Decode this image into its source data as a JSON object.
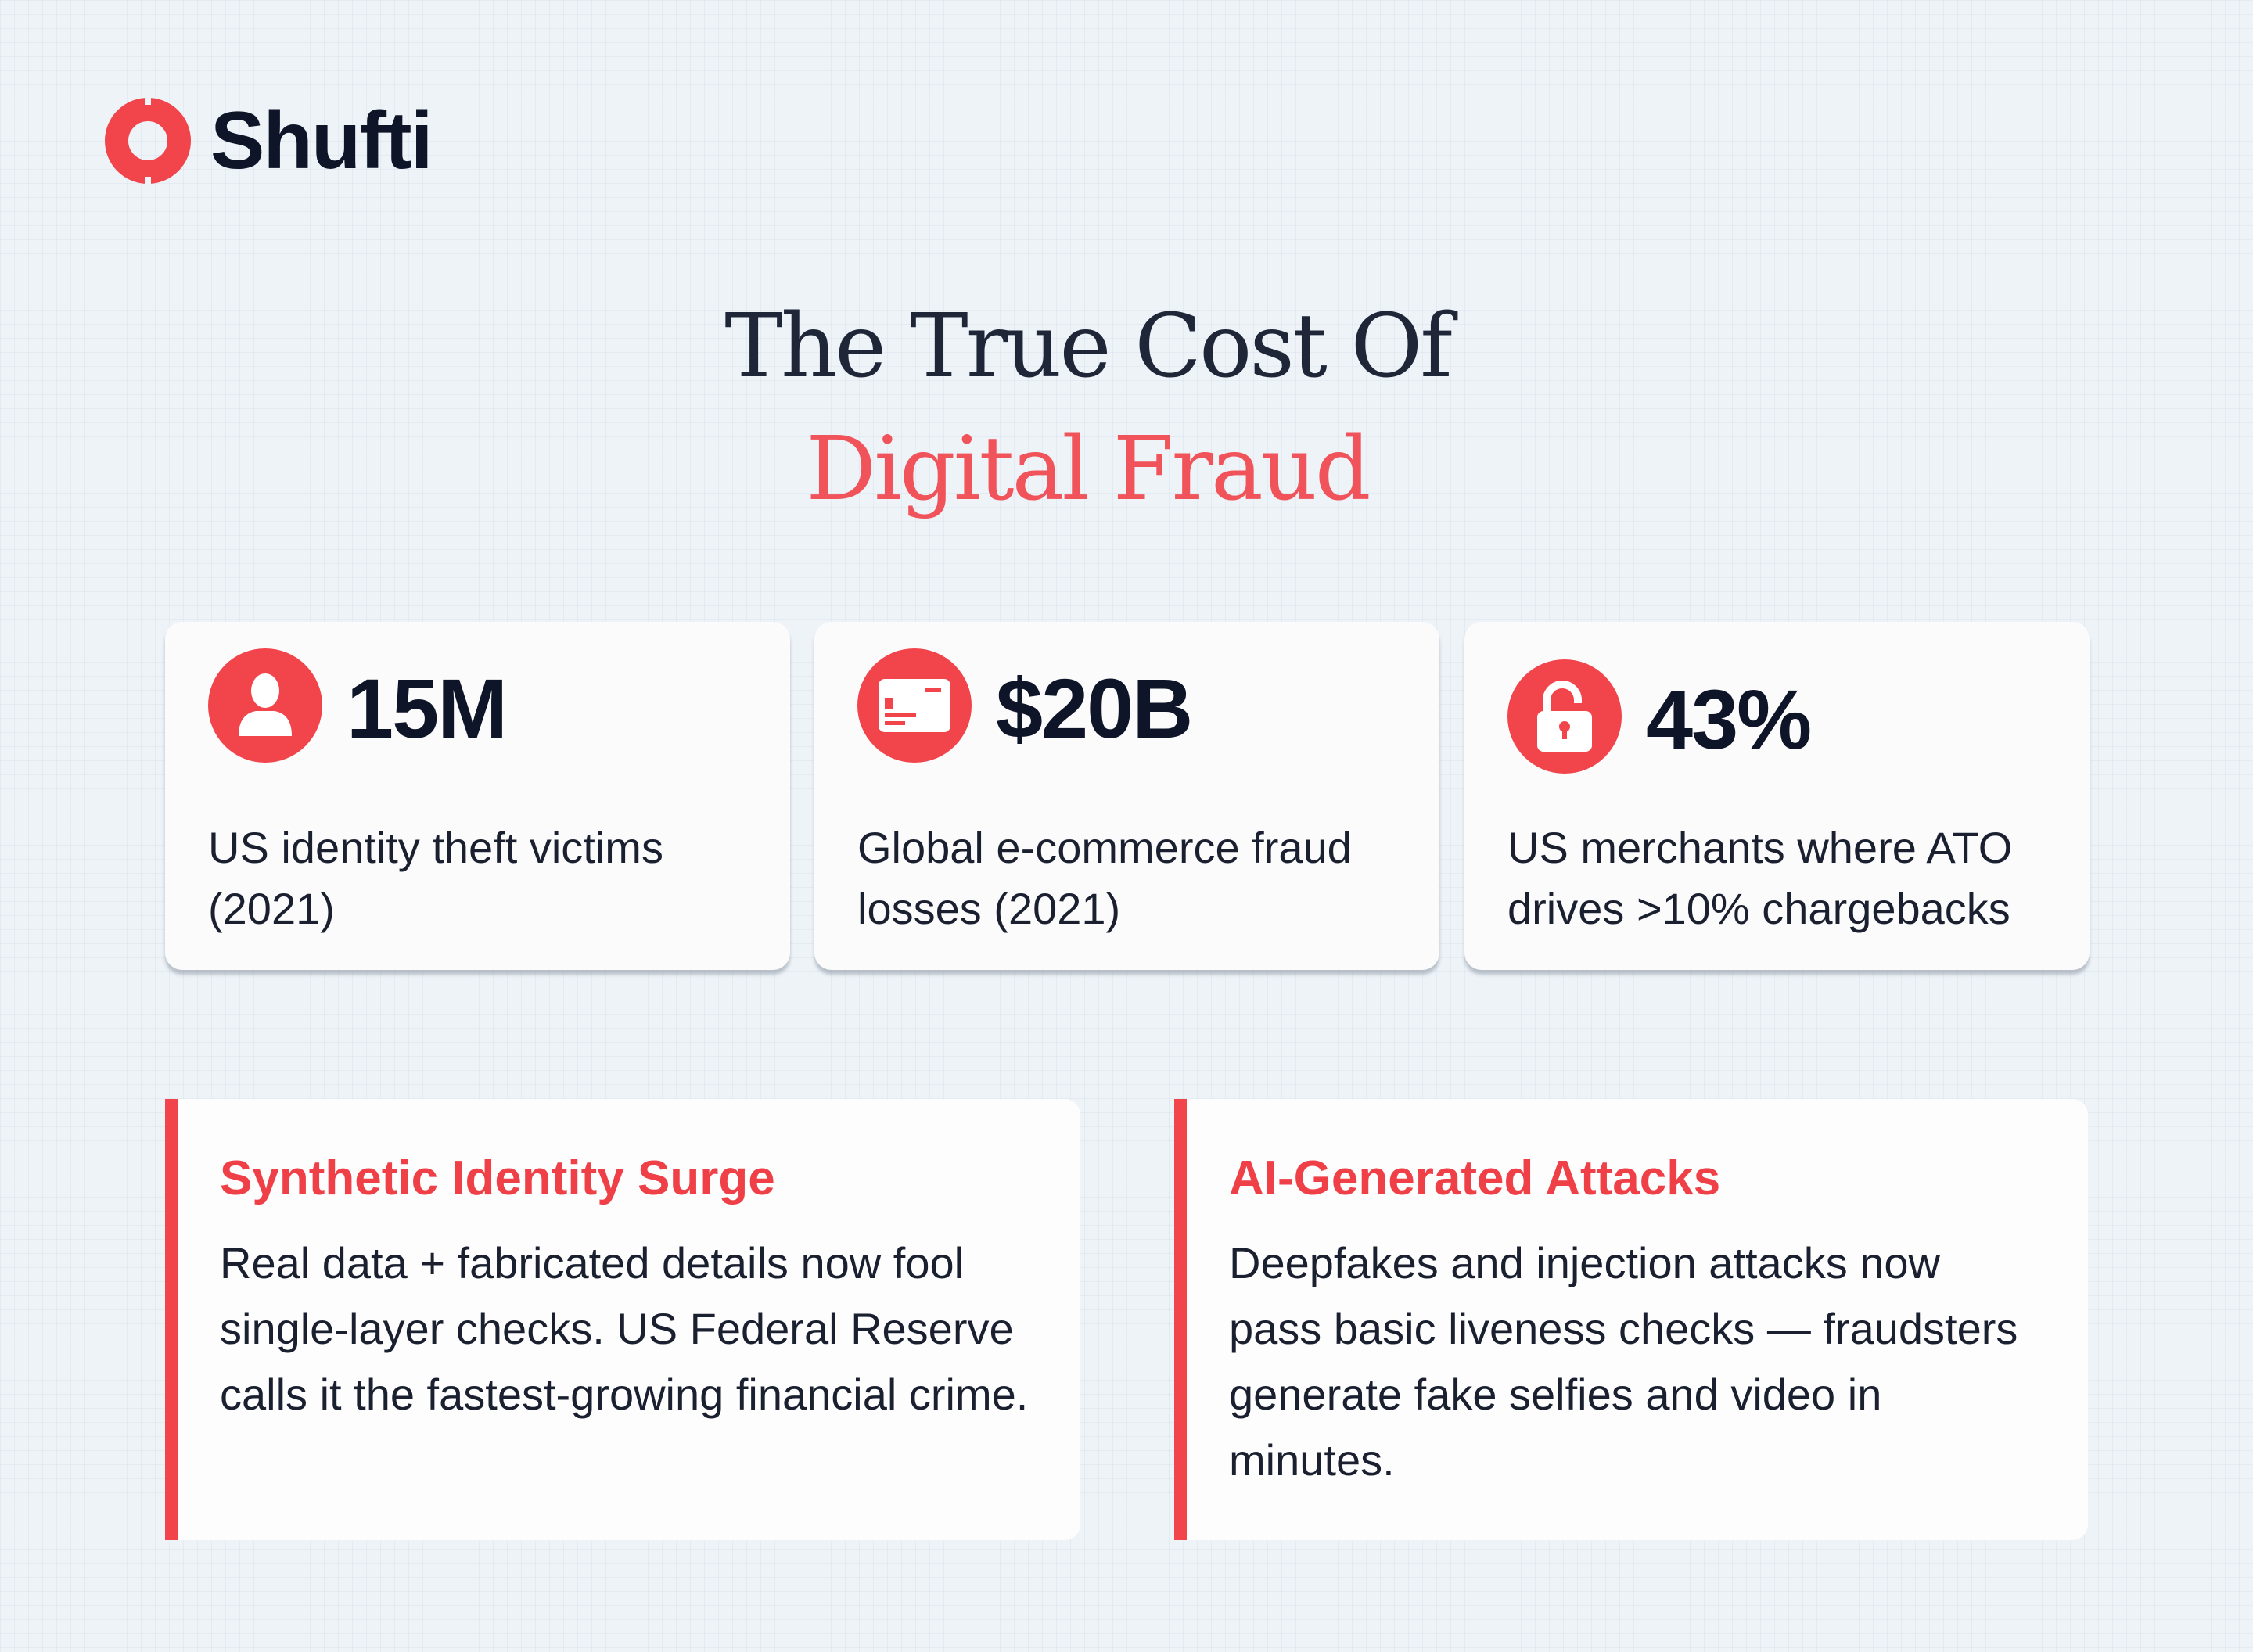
{
  "brand": {
    "name": "Shufti",
    "color": "#f2444b",
    "logo_icon": "ring-logo"
  },
  "header": {
    "title_line1": "The True Cost Of",
    "title_line2": "Digital Fraud"
  },
  "stats": [
    {
      "icon": "user-icon",
      "value": "15M",
      "description": "US identity theft victims (2021)"
    },
    {
      "icon": "credit-card-icon",
      "value": "$20B",
      "description": "Global e-commerce fraud losses (2021)"
    },
    {
      "icon": "unlocked-padlock-icon",
      "value": "43%",
      "description": "US merchants where ATO drives >10% chargebacks"
    }
  ],
  "insights": [
    {
      "title": "Synthetic Identity Surge",
      "body": "Real data + fabricated details now fool single-layer checks. US Federal Reserve calls it the fastest-growing financial crime."
    },
    {
      "title": "AI-Generated Attacks",
      "body": "Deepfakes and injection attacks now pass basic liveness checks — fraudsters generate fake selfies and video in minutes."
    }
  ]
}
